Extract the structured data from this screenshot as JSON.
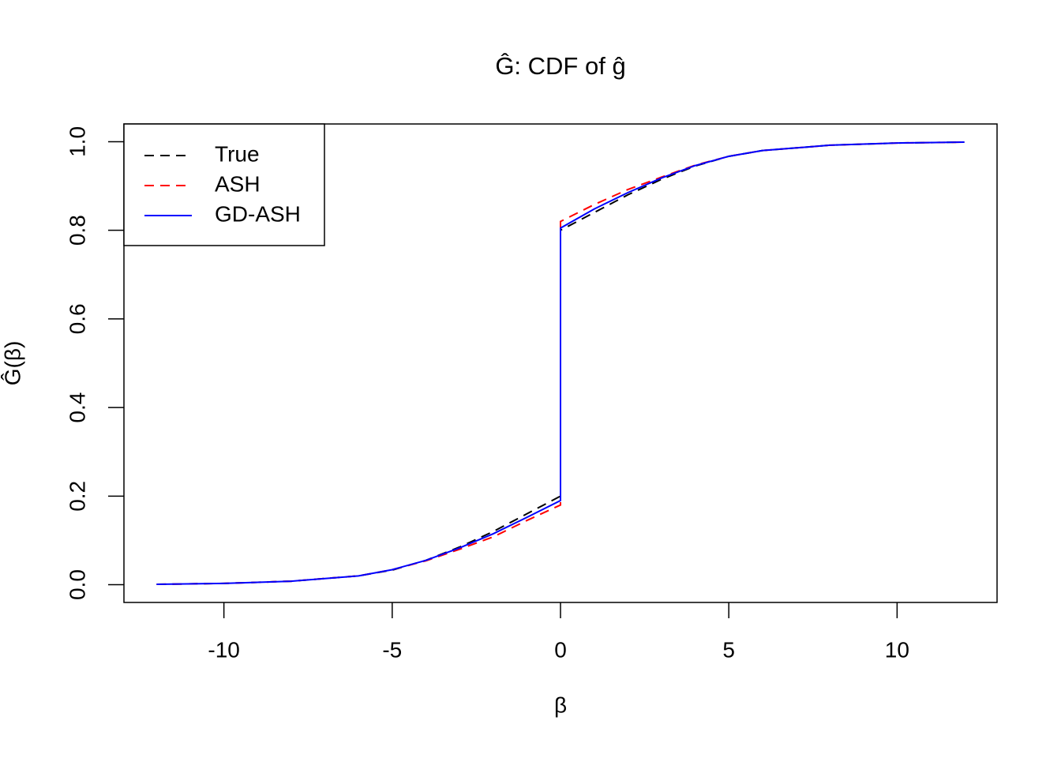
{
  "chart_data": {
    "type": "line",
    "title": "Ĝ: CDF of ĝ",
    "x_label": "β",
    "y_label": "Ĝ(β)",
    "x": [
      -12,
      -10,
      -8,
      -6,
      -5,
      -4,
      -3,
      -2,
      -1,
      0,
      0,
      1,
      2,
      3,
      4,
      5,
      6,
      8,
      10,
      12
    ],
    "series": [
      {
        "name": "True",
        "color": "#000000",
        "dash": true,
        "values": [
          0.001,
          0.003,
          0.008,
          0.02,
          0.033,
          0.055,
          0.085,
          0.12,
          0.16,
          0.2,
          0.8,
          0.84,
          0.88,
          0.915,
          0.945,
          0.967,
          0.98,
          0.992,
          0.997,
          0.999
        ]
      },
      {
        "name": "ASH",
        "color": "#ff0000",
        "dash": true,
        "values": [
          0.001,
          0.003,
          0.008,
          0.02,
          0.034,
          0.054,
          0.08,
          0.108,
          0.145,
          0.18,
          0.82,
          0.858,
          0.892,
          0.92,
          0.947,
          0.967,
          0.98,
          0.992,
          0.997,
          0.999
        ]
      },
      {
        "name": "GD-ASH",
        "color": "#0000ff",
        "dash": false,
        "values": [
          0.001,
          0.003,
          0.008,
          0.02,
          0.034,
          0.055,
          0.083,
          0.115,
          0.152,
          0.19,
          0.805,
          0.848,
          0.885,
          0.918,
          0.946,
          0.967,
          0.98,
          0.992,
          0.997,
          0.999
        ]
      }
    ],
    "xlim": [
      -12.97,
      12.97
    ],
    "ylim": [
      -0.04,
      1.04
    ],
    "xticks": [
      -10,
      -5,
      0,
      5,
      10
    ],
    "yticks": [
      {
        "value": 0,
        "label": "0.0"
      },
      0.2,
      0.4,
      0.6,
      0.8,
      {
        "value": 1,
        "label": "1.0"
      }
    ],
    "legend": "top-left"
  }
}
